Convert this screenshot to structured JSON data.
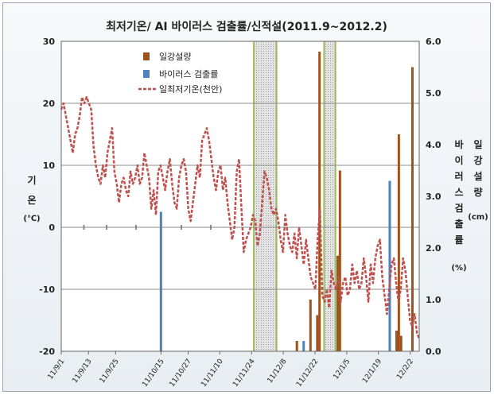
{
  "chart_data": {
    "type": "line+bar",
    "title": "최저기온/ AI 바이러스 검출률/신적설(2011.9~2012.2)",
    "y_left": {
      "label_chars": [
        "기",
        "온"
      ],
      "unit": "(℃)",
      "ticks": [
        30,
        20,
        10,
        0,
        -10,
        -20
      ],
      "range": [
        -20,
        30
      ]
    },
    "y_right": {
      "label_col1": [
        "바",
        "이",
        "러",
        "스",
        "검",
        "출",
        "률"
      ],
      "label_col2": [
        "일",
        "강",
        "설",
        "량"
      ],
      "unit_cm": "(cm)",
      "unit_pct": "(%)",
      "ticks": [
        "6.0",
        "5.0",
        "4.0",
        "3.0",
        "2.0",
        "1.0",
        "0.0"
      ],
      "range": [
        0,
        6
      ]
    },
    "x_ticks": [
      "11/9/1",
      "11/9/13",
      "11/9/25",
      "11/10/15",
      "11/10/27",
      "11/11/10",
      "11/11/24",
      "11/12/8",
      "11/12/22",
      "12/1/5",
      "12/1/19",
      "12/2/2"
    ],
    "x_tick_day": [
      0,
      12,
      24,
      44,
      56,
      70,
      84,
      98,
      112,
      126,
      140,
      154
    ],
    "day_span": [
      0,
      158
    ],
    "legend": [
      "일강설량",
      "바이러스 검출률",
      "일최저기온(천안)"
    ],
    "colors": {
      "snow": "#a0521d",
      "virus": "#4f81bd",
      "temp": "#c0504d",
      "shade_edge": "#9bbb59"
    },
    "shaded_periods": [
      [
        85,
        95
      ],
      [
        116,
        121
      ]
    ],
    "virus_rate": [
      {
        "day": 44,
        "value": 2.7
      },
      {
        "day": 107,
        "value": 0.2
      },
      {
        "day": 145,
        "value": 3.3
      }
    ],
    "snowfall": [
      {
        "day": 104,
        "value": 0.2
      },
      {
        "day": 110,
        "value": 1.0
      },
      {
        "day": 113,
        "value": 0.7
      },
      {
        "day": 114,
        "value": 5.8
      },
      {
        "day": 122,
        "value": 1.85
      },
      {
        "day": 123,
        "value": 3.5
      },
      {
        "day": 148,
        "value": 0.4
      },
      {
        "day": 149,
        "value": 4.2
      },
      {
        "day": 150,
        "value": 0.3
      },
      {
        "day": 155,
        "value": 5.5
      }
    ],
    "daily_min_temp": [
      19,
      20,
      18,
      16,
      14,
      12,
      15,
      16,
      18,
      21,
      20,
      21,
      20,
      19,
      13,
      10,
      8,
      7,
      10,
      8,
      12,
      14,
      16,
      9,
      7,
      4,
      7,
      8,
      6,
      5,
      9,
      7,
      8,
      10,
      7,
      8,
      12,
      10,
      8,
      3,
      6,
      2,
      9,
      10,
      8,
      6,
      9,
      11,
      7,
      4,
      3,
      8,
      10,
      11,
      9,
      3,
      1,
      4,
      7,
      10,
      8,
      14,
      15,
      16,
      14,
      11,
      8,
      6,
      9,
      10,
      6,
      8,
      4,
      1,
      -2,
      0,
      9,
      11,
      3,
      -4,
      -2,
      -1,
      0,
      2,
      1,
      -3,
      -1,
      4,
      9,
      8,
      6,
      3,
      2,
      3,
      1,
      -2,
      -4,
      2,
      -1,
      -3,
      -4,
      -1,
      -5,
      0,
      -3,
      -6,
      -2,
      -5,
      -8,
      -9,
      -10,
      -2,
      3,
      -11,
      -12,
      -10,
      -13,
      -7,
      -9,
      -10,
      -8,
      -12,
      -9,
      -8,
      -11,
      -10,
      -6,
      -9,
      -7,
      -10,
      -9,
      -5,
      -8,
      -12,
      -6,
      -9,
      -5,
      -3,
      -2,
      -8,
      -11,
      -14,
      -10,
      -6,
      -5,
      -9,
      -12,
      -10,
      -5,
      -7,
      -11,
      -15,
      -16,
      -14,
      -17,
      -18
    ]
  }
}
